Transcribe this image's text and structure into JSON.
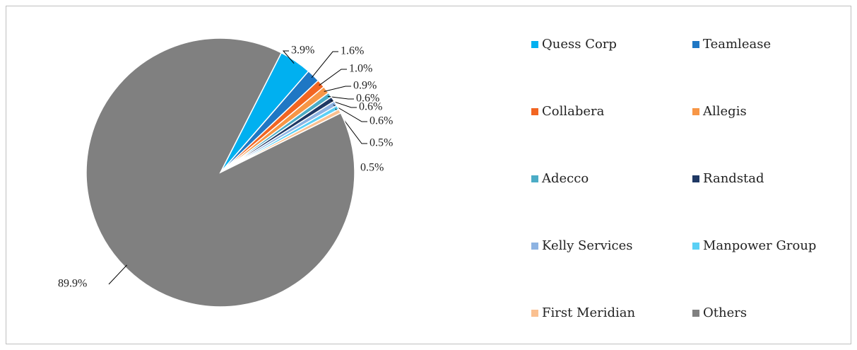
{
  "chart_data": {
    "type": "pie",
    "categories": [
      "Quess Corp",
      "Teamlease",
      "Collabera",
      "Allegis",
      "Adecco",
      "Randstad",
      "Kelly Services",
      "Manpower Group",
      "First Meridian",
      "Others"
    ],
    "values": [
      3.9,
      1.6,
      1.0,
      0.9,
      0.6,
      0.6,
      0.6,
      0.5,
      0.5,
      89.9
    ],
    "value_labels": [
      "3.9%",
      "1.6%",
      "1.0%",
      "0.9%",
      "0.6%",
      "0.6%",
      "0.6%",
      "0.5%",
      "0.5%",
      "89.9%"
    ],
    "colors": [
      "#00b0f0",
      "#1f77c4",
      "#f26522",
      "#f79646",
      "#4bacc6",
      "#1f3864",
      "#8db3e2",
      "#5bd0f5",
      "#fac090",
      "#808080"
    ],
    "legend": "right"
  }
}
